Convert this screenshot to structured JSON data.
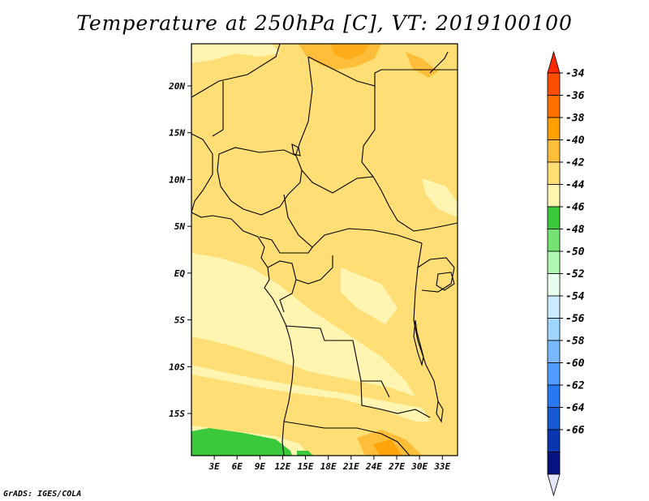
{
  "title": "Temperature at 250hPa [C], VT: 2019100100",
  "footer": "GrADS: IGES/COLA",
  "map": {
    "lat_ticks": [
      "20N",
      "15N",
      "10N",
      "5N",
      "EQ",
      "5S",
      "10S",
      "15S"
    ],
    "lat_values": [
      20,
      15,
      10,
      5,
      0,
      -5,
      -10,
      -15
    ],
    "lon_ticks": [
      "3E",
      "6E",
      "9E",
      "12E",
      "15E",
      "18E",
      "21E",
      "24E",
      "27E",
      "30E",
      "33E"
    ],
    "lon_values": [
      3,
      6,
      9,
      12,
      15,
      18,
      21,
      24,
      27,
      30,
      33
    ],
    "lon_range": [
      0,
      35
    ],
    "lat_range": [
      -19.5,
      24.5
    ]
  },
  "colorbar": {
    "labels": [
      "-34",
      "-36",
      "-38",
      "-40",
      "-42",
      "-44",
      "-46",
      "-48",
      "-50",
      "-52",
      "-54",
      "-56",
      "-58",
      "-60",
      "-62",
      "-64",
      "-66"
    ],
    "colors": [
      "#ff4e00",
      "#ff6f00",
      "#ff9f00",
      "#ffbe3a",
      "#ffdf75",
      "#fff5b0",
      "#3ac93a",
      "#73e273",
      "#b0f5b0",
      "#e8fff0",
      "#c8ebff",
      "#9fd5ff",
      "#78b9ff",
      "#4f9bff",
      "#2a78f0",
      "#1459d0",
      "#0a37b0",
      "#0a1480"
    ],
    "top_color": "#ff2800",
    "bottom_color": "#e6e6fa"
  }
}
